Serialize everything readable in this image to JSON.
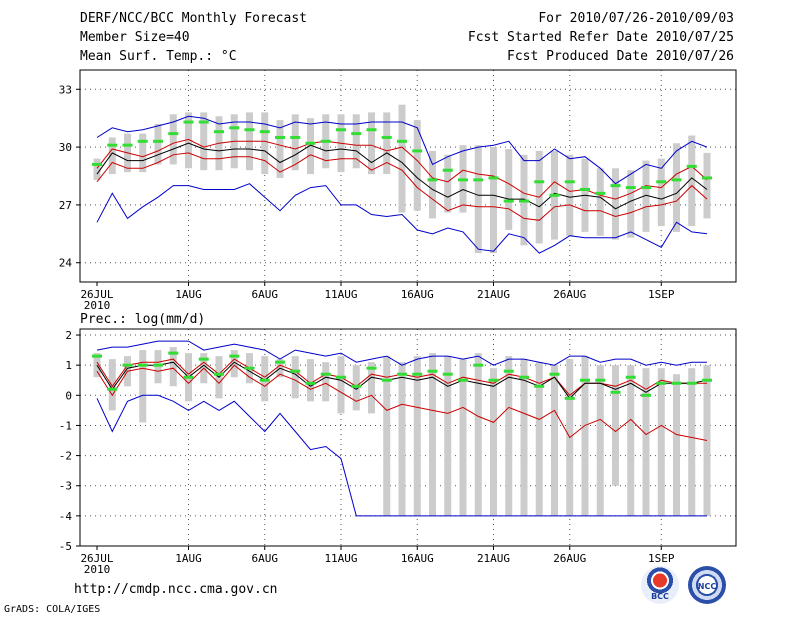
{
  "header": {
    "line1_left": "DERF/NCC/BCC Monthly Forecast",
    "line2_left": "Member Size=40",
    "line3_left": "Mean Surf. Temp.: °C",
    "line1_right": "For 2010/07/26-2010/09/03",
    "line2_right": "Fcst Started Refer Date 2010/07/25",
    "line3_right": "Fcst Produced Date 2010/07/26"
  },
  "footer": {
    "url": "http://cmdp.ncc.cma.gov.cn",
    "credit": "GrADS: COLA/IGES",
    "logo1_text": "BCC",
    "logo2_text": "NCC"
  },
  "colors": {
    "envelope": "#0000cc",
    "spread": "#cc0000",
    "mean": "#000000",
    "marker": "#33dd33",
    "box": "#cccccc",
    "grid": "#555555"
  },
  "chart_data": [
    {
      "type": "line",
      "title": "Mean Surf. Temp.: °C",
      "xlabel": "",
      "ylabel": "°C",
      "ylim": [
        23,
        34
      ],
      "yticks": [
        24,
        27,
        30,
        33
      ],
      "xlim": [
        0,
        40
      ],
      "xticks": [
        {
          "day": 0,
          "label": "26JUL",
          "sub": "2010"
        },
        {
          "day": 6,
          "label": "1AUG"
        },
        {
          "day": 11,
          "label": "6AUG"
        },
        {
          "day": 16,
          "label": "11AUG"
        },
        {
          "day": 21,
          "label": "16AUG"
        },
        {
          "day": 26,
          "label": "21AUG"
        },
        {
          "day": 31,
          "label": "26AUG"
        },
        {
          "day": 37,
          "label": "1SEP"
        }
      ],
      "grid": true,
      "series": [
        {
          "name": "max",
          "values": [
            30.5,
            31.0,
            30.8,
            30.9,
            31.1,
            31.3,
            31.6,
            31.5,
            31.2,
            31.3,
            31.3,
            31.2,
            31.0,
            31.3,
            31.2,
            31.3,
            31.2,
            31.2,
            31.3,
            31.3,
            31.3,
            31.0,
            29.1,
            29.5,
            29.8,
            30.0,
            30.1,
            30.3,
            29.3,
            29.3,
            29.9,
            29.4,
            29.5,
            28.9,
            28.1,
            28.6,
            29.1,
            28.9,
            29.8,
            30.3,
            30.0
          ]
        },
        {
          "name": "upper",
          "values": [
            28.9,
            29.9,
            29.7,
            29.5,
            29.8,
            30.2,
            30.4,
            30.0,
            30.2,
            30.3,
            30.3,
            30.3,
            30.1,
            29.9,
            30.2,
            30.3,
            30.2,
            30.1,
            30.1,
            29.8,
            30.0,
            29.3,
            28.4,
            28.2,
            28.8,
            28.6,
            28.5,
            28.1,
            27.6,
            27.4,
            28.2,
            27.7,
            27.8,
            27.5,
            27.3,
            27.6,
            28.0,
            27.9,
            28.6,
            29.0,
            28.3
          ]
        },
        {
          "name": "mean",
          "values": [
            28.6,
            29.7,
            29.3,
            29.3,
            29.6,
            29.9,
            30.2,
            29.9,
            29.8,
            29.9,
            29.9,
            29.8,
            29.2,
            29.6,
            30.1,
            29.8,
            29.9,
            29.8,
            29.2,
            29.7,
            29.2,
            28.4,
            27.8,
            27.4,
            27.8,
            27.5,
            27.5,
            27.3,
            27.3,
            26.9,
            27.6,
            27.4,
            27.5,
            27.4,
            26.8,
            27.2,
            27.5,
            27.3,
            27.6,
            28.4,
            27.8
          ]
        },
        {
          "name": "lower",
          "values": [
            28.2,
            29.2,
            28.9,
            28.9,
            29.2,
            29.6,
            29.7,
            29.4,
            29.4,
            29.5,
            29.5,
            29.3,
            28.7,
            29.1,
            29.6,
            29.3,
            29.4,
            29.4,
            28.8,
            29.2,
            28.8,
            27.9,
            27.3,
            26.7,
            27.0,
            26.9,
            26.9,
            26.8,
            26.3,
            26.2,
            26.9,
            27.0,
            26.7,
            26.7,
            26.4,
            26.6,
            26.9,
            27.0,
            27.2,
            28.0,
            27.3
          ]
        },
        {
          "name": "min",
          "values": [
            26.1,
            27.6,
            26.3,
            26.9,
            27.4,
            28.0,
            28.0,
            27.8,
            27.8,
            27.8,
            28.1,
            27.4,
            26.7,
            27.5,
            27.9,
            28.0,
            27.0,
            27.0,
            26.5,
            26.4,
            26.5,
            25.7,
            25.5,
            25.8,
            25.6,
            24.7,
            24.6,
            25.5,
            25.3,
            24.5,
            24.9,
            25.4,
            25.3,
            25.3,
            25.3,
            25.6,
            25.2,
            24.8,
            26.1,
            25.6,
            25.5
          ]
        },
        {
          "name": "marker",
          "values": [
            29.1,
            30.1,
            30.1,
            30.3,
            30.3,
            30.7,
            31.3,
            31.3,
            30.8,
            31.0,
            30.9,
            30.8,
            30.5,
            30.5,
            30.2,
            30.3,
            30.9,
            30.7,
            30.9,
            30.5,
            30.3,
            29.8,
            28.3,
            28.8,
            28.3,
            28.3,
            28.4,
            27.2,
            27.2,
            28.2,
            27.5,
            28.2,
            27.8,
            27.6,
            28.0,
            27.9,
            27.9,
            28.2,
            28.3,
            29.0,
            28.4
          ]
        },
        {
          "name": "box_top",
          "values": [
            29.4,
            30.5,
            30.7,
            30.7,
            31.2,
            31.7,
            31.8,
            31.8,
            31.6,
            31.7,
            31.8,
            31.8,
            31.4,
            31.7,
            31.5,
            31.7,
            31.7,
            31.7,
            31.8,
            31.8,
            32.2,
            31.4,
            29.8,
            29.6,
            30.1,
            30.1,
            30.0,
            29.9,
            29.6,
            29.8,
            29.8,
            29.6,
            29.4,
            28.9,
            28.9,
            28.8,
            29.3,
            29.4,
            30.2,
            30.6,
            29.7
          ]
        },
        {
          "name": "box_bottom",
          "values": [
            28.3,
            28.6,
            28.7,
            28.7,
            29.1,
            29.1,
            28.9,
            28.8,
            28.8,
            28.9,
            28.8,
            28.6,
            28.4,
            28.8,
            28.6,
            28.9,
            28.7,
            28.9,
            28.6,
            28.6,
            26.6,
            26.7,
            26.3,
            26.6,
            26.6,
            24.5,
            24.5,
            25.7,
            24.9,
            25.0,
            25.2,
            25.4,
            25.6,
            25.4,
            25.2,
            25.3,
            25.6,
            25.9,
            25.6,
            25.9,
            26.3
          ]
        }
      ]
    },
    {
      "type": "line",
      "title": "Prec.: log(mm/d)",
      "xlabel": "",
      "ylabel": "log(mm/d)",
      "ylim": [
        -5,
        2.2
      ],
      "yticks": [
        -5,
        -4,
        -3,
        -2,
        -1,
        0,
        1,
        2
      ],
      "xlim": [
        0,
        40
      ],
      "xticks": [
        {
          "day": 0,
          "label": "26JUL",
          "sub": "2010"
        },
        {
          "day": 6,
          "label": "1AUG"
        },
        {
          "day": 11,
          "label": "6AUG"
        },
        {
          "day": 16,
          "label": "11AUG"
        },
        {
          "day": 21,
          "label": "16AUG"
        },
        {
          "day": 26,
          "label": "21AUG"
        },
        {
          "day": 31,
          "label": "26AUG"
        },
        {
          "day": 37,
          "label": "1SEP"
        }
      ],
      "grid": true,
      "series": [
        {
          "name": "max",
          "values": [
            1.5,
            1.6,
            1.6,
            1.7,
            1.8,
            1.8,
            1.8,
            1.5,
            1.6,
            1.7,
            1.6,
            1.5,
            1.2,
            1.5,
            1.4,
            1.3,
            1.4,
            1.1,
            1.2,
            1.3,
            1.0,
            1.2,
            1.3,
            1.3,
            1.2,
            1.3,
            1.0,
            1.2,
            1.2,
            1.1,
            1.0,
            1.3,
            1.3,
            1.1,
            1.2,
            1.2,
            1.0,
            1.1,
            1.0,
            1.1,
            1.1
          ]
        },
        {
          "name": "upper",
          "values": [
            1.1,
            0.3,
            1.0,
            1.1,
            1.1,
            1.2,
            0.7,
            1.1,
            0.7,
            1.2,
            0.9,
            0.6,
            1.0,
            0.8,
            0.4,
            0.7,
            0.6,
            0.3,
            0.7,
            0.6,
            0.7,
            0.6,
            0.7,
            0.4,
            0.6,
            0.5,
            0.4,
            0.7,
            0.6,
            0.4,
            0.6,
            0.0,
            0.4,
            0.4,
            0.3,
            0.5,
            0.2,
            0.5,
            0.4,
            0.4,
            0.4
          ]
        },
        {
          "name": "mean",
          "values": [
            1.0,
            0.2,
            0.9,
            1.0,
            1.0,
            1.1,
            0.6,
            1.0,
            0.6,
            1.1,
            0.8,
            0.5,
            0.9,
            0.7,
            0.3,
            0.6,
            0.5,
            0.2,
            0.6,
            0.5,
            0.6,
            0.5,
            0.6,
            0.3,
            0.5,
            0.4,
            0.3,
            0.6,
            0.5,
            0.3,
            0.6,
            -0.1,
            0.4,
            0.4,
            0.2,
            0.4,
            0.1,
            0.4,
            0.4,
            0.4,
            0.5
          ]
        },
        {
          "name": "lower",
          "values": [
            0.8,
            0.0,
            0.8,
            0.9,
            0.8,
            0.9,
            0.4,
            0.9,
            0.4,
            1.0,
            0.6,
            0.3,
            0.7,
            0.5,
            0.2,
            0.4,
            0.1,
            -0.2,
            0.0,
            -0.5,
            -0.3,
            -0.4,
            -0.5,
            -0.6,
            -0.4,
            -0.7,
            -0.9,
            -0.4,
            -0.6,
            -0.8,
            -0.5,
            -1.4,
            -1.0,
            -0.8,
            -1.2,
            -0.8,
            -1.3,
            -1.0,
            -1.3,
            -1.4,
            -1.5
          ]
        },
        {
          "name": "min",
          "values": [
            -0.1,
            -1.2,
            -0.2,
            0.0,
            0.0,
            -0.2,
            -0.5,
            -0.2,
            -0.5,
            -0.2,
            -0.7,
            -1.2,
            -0.6,
            -1.2,
            -1.8,
            -1.7,
            -2.1,
            -4.0,
            -4.0,
            -4.0,
            -4.0,
            -4.0,
            -4.0,
            -4.0,
            -4.0,
            -4.0,
            -4.0,
            -4.0,
            -4.0,
            -4.0,
            -4.0,
            -4.0,
            -4.0,
            -4.0,
            -4.0,
            -4.0,
            -4.0,
            -4.0,
            -4.0,
            -4.0,
            -4.0
          ]
        },
        {
          "name": "marker",
          "values": [
            1.3,
            0.2,
            1.0,
            1.0,
            1.0,
            1.4,
            0.6,
            1.2,
            0.7,
            1.3,
            0.9,
            0.5,
            1.1,
            0.8,
            0.4,
            0.7,
            0.6,
            0.3,
            0.9,
            0.5,
            0.7,
            0.7,
            0.8,
            0.7,
            0.5,
            1.0,
            0.5,
            0.8,
            0.6,
            0.3,
            0.7,
            -0.1,
            0.5,
            0.5,
            0.1,
            0.6,
            0.0,
            0.4,
            0.4,
            0.4,
            0.5
          ]
        },
        {
          "name": "box_top",
          "values": [
            1.4,
            1.2,
            1.3,
            1.5,
            1.5,
            1.6,
            1.4,
            1.4,
            1.3,
            1.5,
            1.4,
            1.3,
            1.2,
            1.3,
            1.2,
            1.1,
            1.3,
            1.0,
            1.1,
            1.3,
            1.1,
            1.3,
            1.4,
            1.3,
            1.2,
            1.4,
            0.9,
            1.3,
            1.2,
            1.1,
            1.0,
            1.2,
            1.3,
            1.0,
            1.0,
            1.0,
            0.9,
            0.9,
            0.7,
            0.9,
            1.0
          ]
        },
        {
          "name": "box_bottom",
          "values": [
            0.6,
            -0.5,
            0.3,
            -0.9,
            0.4,
            0.3,
            -0.2,
            0.4,
            -0.1,
            0.6,
            0.4,
            -0.2,
            0.6,
            -0.1,
            -0.2,
            -0.2,
            -0.6,
            -0.5,
            -0.6,
            -4.0,
            -4.0,
            -4.0,
            -4.0,
            -4.0,
            -4.0,
            -4.0,
            -4.0,
            -4.0,
            -4.0,
            -4.0,
            -4.0,
            -4.0,
            -4.0,
            -4.0,
            -3.0,
            -4.0,
            -4.0,
            -4.0,
            -4.0,
            -4.0,
            -4.0
          ]
        }
      ]
    }
  ]
}
